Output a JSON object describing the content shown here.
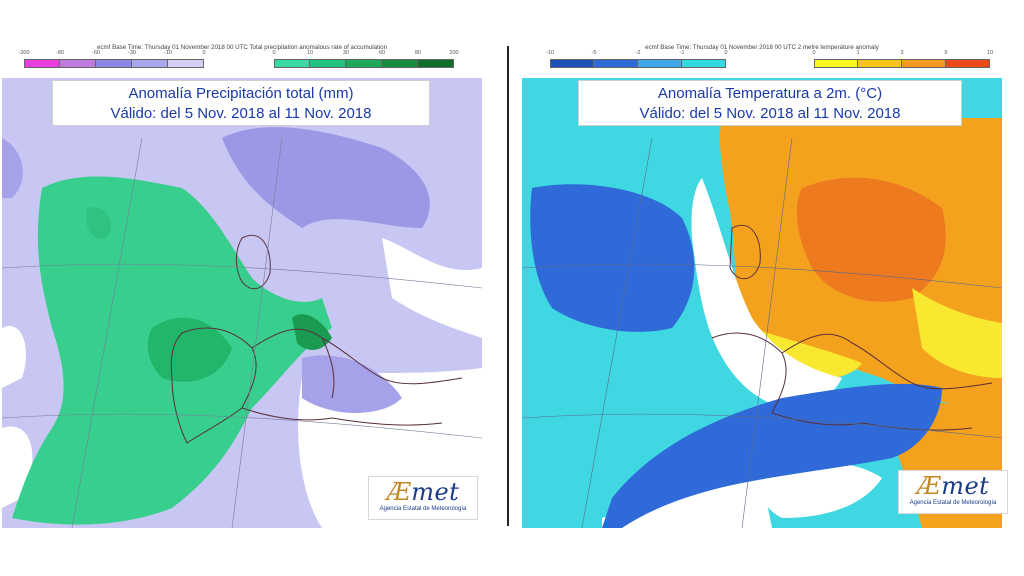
{
  "left": {
    "header": "ecmf  Base Time: Thursday 01 November 2018 00 UTC  Total precipitation anomalous rate of accumulation",
    "neg_ticks": [
      "-200",
      "-80",
      "-60",
      "-30",
      "-10",
      "0"
    ],
    "pos_ticks": [
      "0",
      "10",
      "30",
      "60",
      "80",
      "200"
    ],
    "neg_colors": [
      "#e83ee0",
      "#c07ae0",
      "#8e86e6",
      "#aaa6ee",
      "#d2d0f6"
    ],
    "pos_colors": [
      "#38d9a4",
      "#20c47e",
      "#1caa5a",
      "#168c3e",
      "#0f6e2a"
    ],
    "title_line1": "Anomalía Precipitación total (mm)",
    "title_line2": "Válido: del 5 Nov. 2018 al 11 Nov. 2018",
    "logo_word_a": "Æ",
    "logo_word_rest": "met",
    "logo_sub": "Agencia Estatal de Meteorología"
  },
  "right": {
    "header": "ecmf  Base Time: Thursday 01 November 2018 00 UTC  2 metre temperature anomaly",
    "neg_ticks": [
      "-10",
      "-5",
      "-2",
      "-1",
      "0"
    ],
    "pos_ticks": [
      "0",
      "1",
      "3",
      "6",
      "10"
    ],
    "neg_colors": [
      "#1f4fb8",
      "#2f6ad8",
      "#3fa6e8",
      "#34d8e0"
    ],
    "pos_colors": [
      "#f8f820",
      "#f8c418",
      "#f29a20",
      "#ea4a18"
    ],
    "title_line1": "Anomalía Temperatura a 2m. (°C)",
    "title_line2": "Válido: del 5 Nov. 2018 al 11 Nov. 2018",
    "logo_word_a": "Æ",
    "logo_word_rest": "met",
    "logo_sub": "Agencia Estatal de Meteorología"
  }
}
